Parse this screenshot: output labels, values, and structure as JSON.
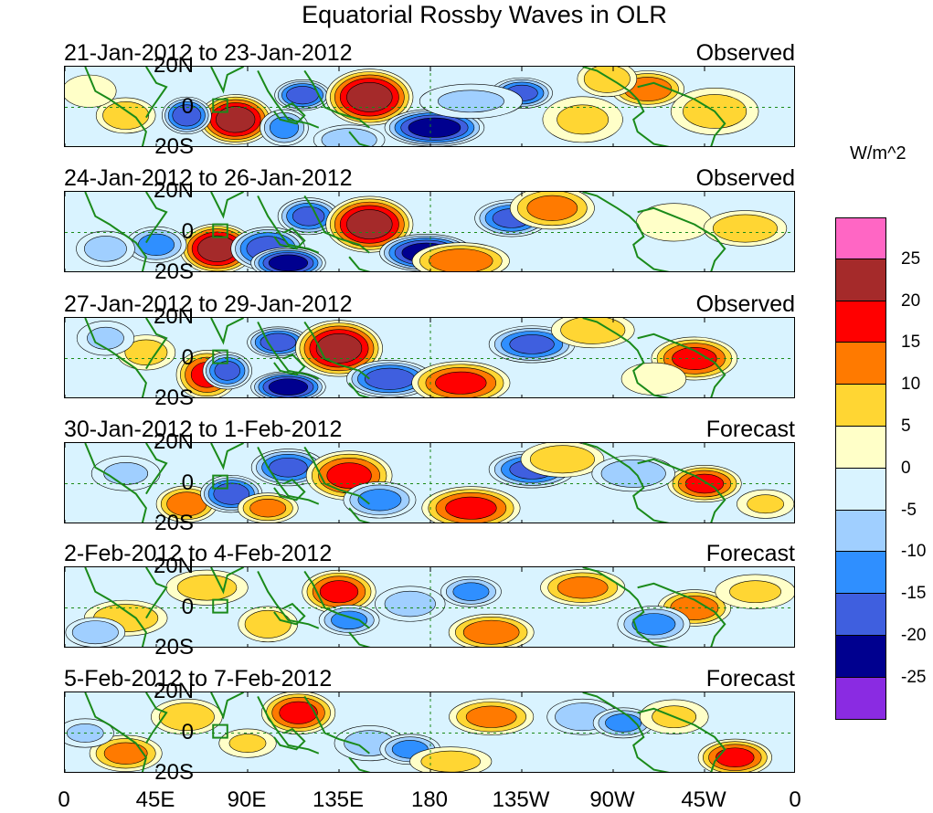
{
  "title": "Equatorial Rossby Waves in OLR",
  "units": "W/m^2",
  "chart_data": {
    "type": "heatmap",
    "title": "Equatorial Rossby Waves in OLR",
    "variable": "OLR anomaly",
    "units": "W/m^2",
    "x_ticks": [
      "0",
      "45E",
      "90E",
      "135E",
      "180",
      "135W",
      "90W",
      "45W",
      "0"
    ],
    "y_ticks": [
      "20N",
      "0",
      "20S"
    ],
    "lon_range": [
      0,
      360
    ],
    "lat_range": [
      -20,
      20
    ],
    "colorbar": {
      "levels": [
        "25",
        "20",
        "15",
        "10",
        "5",
        "0",
        "-5",
        "-10",
        "-15",
        "-20",
        "-25"
      ],
      "colors": [
        "#ff66c4",
        "#a52a2a",
        "#ff0000",
        "#ff7a00",
        "#ffd633",
        "#ffffc8",
        "#d9f3ff",
        "#a0cfff",
        "#2f8fff",
        "#3f5fdf",
        "#00008f",
        "#8a2be2"
      ]
    },
    "panels": [
      {
        "label": "21-Jan-2012 to 23-Jan-2012",
        "type": "Observed",
        "features": [
          [
            84,
            -6,
            12,
            8,
            27
          ],
          [
            60,
            -4,
            8,
            6,
            -22
          ],
          [
            117,
            6,
            9,
            5,
            -22
          ],
          [
            150,
            5,
            14,
            9,
            27
          ],
          [
            182,
            -10,
            16,
            6,
            -27
          ],
          [
            225,
            7,
            10,
            5,
            -20
          ],
          [
            287,
            9,
            12,
            6,
            17
          ],
          [
            30,
            -4,
            10,
            6,
            12
          ],
          [
            108,
            -10,
            8,
            6,
            -15
          ],
          [
            200,
            3,
            18,
            6,
            -8
          ],
          [
            255,
            -6,
            14,
            8,
            8
          ],
          [
            320,
            -2,
            15,
            8,
            10
          ],
          [
            12,
            8,
            10,
            6,
            5
          ],
          [
            140,
            -16,
            12,
            5,
            -12
          ],
          [
            267,
            14,
            10,
            6,
            12
          ]
        ]
      },
      {
        "label": "24-Jan-2012 to 26-Jan-2012",
        "type": "Observed",
        "features": [
          [
            75,
            -8,
            12,
            8,
            27
          ],
          [
            100,
            -8,
            12,
            7,
            -22
          ],
          [
            120,
            8,
            10,
            6,
            -20
          ],
          [
            150,
            4,
            14,
            9,
            27
          ],
          [
            178,
            -10,
            15,
            6,
            -27
          ],
          [
            220,
            7,
            12,
            6,
            -20
          ],
          [
            240,
            12,
            14,
            7,
            15
          ],
          [
            195,
            -14,
            16,
            6,
            17
          ],
          [
            45,
            -6,
            10,
            6,
            -15
          ],
          [
            300,
            5,
            14,
            7,
            5
          ],
          [
            335,
            2,
            14,
            6,
            12
          ],
          [
            110,
            -15,
            12,
            5,
            -27
          ],
          [
            20,
            -8,
            10,
            6,
            -10
          ]
        ]
      },
      {
        "label": "27-Jan-2012 to 29-Jan-2012",
        "type": "Observed",
        "features": [
          [
            70,
            -8,
            10,
            8,
            20
          ],
          [
            80,
            -6,
            8,
            6,
            -20
          ],
          [
            105,
            8,
            10,
            5,
            -22
          ],
          [
            135,
            5,
            14,
            9,
            27
          ],
          [
            160,
            -10,
            14,
            6,
            -22
          ],
          [
            195,
            -12,
            16,
            7,
            20
          ],
          [
            230,
            7,
            14,
            6,
            -20
          ],
          [
            260,
            14,
            14,
            6,
            12
          ],
          [
            310,
            0,
            14,
            7,
            20
          ],
          [
            40,
            3,
            10,
            6,
            10
          ],
          [
            110,
            -14,
            12,
            5,
            -27
          ],
          [
            20,
            10,
            10,
            6,
            -8
          ],
          [
            290,
            -10,
            12,
            6,
            5
          ]
        ]
      },
      {
        "label": "30-Jan-2012 to 1-Feb-2012",
        "type": "Forecast",
        "features": [
          [
            60,
            -10,
            10,
            6,
            17
          ],
          [
            82,
            -5,
            10,
            6,
            -22
          ],
          [
            110,
            8,
            12,
            6,
            -20
          ],
          [
            140,
            4,
            14,
            8,
            20
          ],
          [
            155,
            -8,
            12,
            6,
            -15
          ],
          [
            200,
            -12,
            16,
            7,
            20
          ],
          [
            230,
            7,
            14,
            6,
            -20
          ],
          [
            245,
            12,
            14,
            6,
            12
          ],
          [
            315,
            0,
            12,
            6,
            20
          ],
          [
            100,
            -12,
            10,
            5,
            15
          ],
          [
            30,
            5,
            12,
            6,
            -8
          ],
          [
            280,
            5,
            14,
            6,
            -12
          ],
          [
            345,
            -10,
            10,
            5,
            8
          ]
        ]
      },
      {
        "label": "2-Feb-2012 to 4-Feb-2012",
        "type": "Forecast",
        "features": [
          [
            30,
            -5,
            14,
            6,
            12
          ],
          [
            70,
            10,
            14,
            6,
            10
          ],
          [
            100,
            -8,
            10,
            6,
            12
          ],
          [
            135,
            8,
            12,
            7,
            20
          ],
          [
            140,
            -6,
            10,
            5,
            -15
          ],
          [
            170,
            2,
            12,
            6,
            -10
          ],
          [
            210,
            -12,
            14,
            6,
            17
          ],
          [
            200,
            8,
            10,
            5,
            -15
          ],
          [
            255,
            10,
            14,
            6,
            15
          ],
          [
            310,
            0,
            12,
            6,
            17
          ],
          [
            290,
            -8,
            12,
            6,
            -15
          ],
          [
            15,
            -12,
            10,
            5,
            -12
          ],
          [
            340,
            8,
            14,
            6,
            8
          ]
        ]
      },
      {
        "label": "5-Feb-2012 to 7-Feb-2012",
        "type": "Forecast",
        "features": [
          [
            30,
            -10,
            12,
            6,
            15
          ],
          [
            60,
            8,
            12,
            6,
            12
          ],
          [
            115,
            10,
            12,
            7,
            20
          ],
          [
            150,
            -5,
            12,
            6,
            -10
          ],
          [
            170,
            -8,
            10,
            5,
            -15
          ],
          [
            210,
            8,
            14,
            6,
            15
          ],
          [
            255,
            8,
            12,
            6,
            -12
          ],
          [
            275,
            5,
            10,
            5,
            -15
          ],
          [
            330,
            -12,
            12,
            6,
            20
          ],
          [
            90,
            -5,
            10,
            5,
            8
          ],
          [
            10,
            0,
            10,
            5,
            -8
          ],
          [
            300,
            8,
            12,
            6,
            8
          ],
          [
            190,
            -14,
            14,
            5,
            10
          ]
        ]
      }
    ]
  }
}
